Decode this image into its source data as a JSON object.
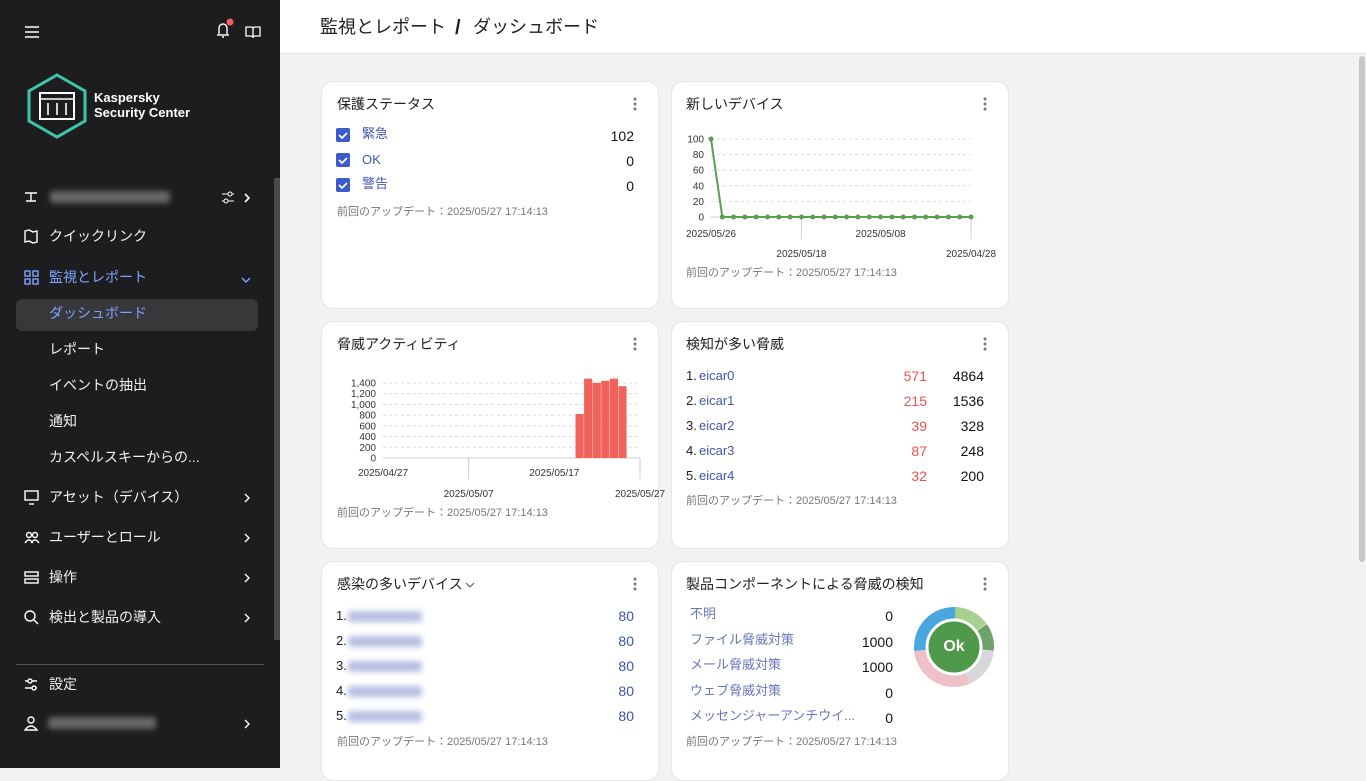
{
  "sidebar": {
    "brand": [
      "Kaspersky",
      "Security Center"
    ],
    "menu": [
      {
        "label": "クイックリンク"
      },
      {
        "label": "監視とレポート",
        "children": [
          "ダッシュボード",
          "レポート",
          "イベントの抽出",
          "通知",
          "カスペルスキーからの..."
        ]
      },
      {
        "label": "アセット（デバイス）"
      },
      {
        "label": "ユーザーとロール"
      },
      {
        "label": "操作"
      },
      {
        "label": "検出と製品の導入"
      }
    ],
    "settings": "設定"
  },
  "breadcrumb": {
    "parent": "監視とレポート",
    "separator": "/",
    "current": "ダッシュボード"
  },
  "widgets": {
    "protection": {
      "title": "保護ステータス",
      "items": [
        {
          "label": "緊急",
          "value": 102
        },
        {
          "label": "OK",
          "value": 0
        },
        {
          "label": "警告",
          "value": 0
        }
      ],
      "updated": "前回のアップデート：2025/05/27 17:14:13"
    },
    "new_devices": {
      "title": "新しいデバイス",
      "chart": {
        "type": "line",
        "categories": [
          "2025/05/26",
          null,
          null,
          null,
          null,
          null,
          null,
          null,
          "2025/05/18",
          null,
          null,
          null,
          null,
          null,
          null,
          "2025/05/08",
          null,
          null,
          null,
          null,
          null,
          null,
          null,
          "2025/04/28"
        ],
        "values": [
          100,
          0,
          0,
          0,
          0,
          0,
          0,
          0,
          0,
          0,
          0,
          0,
          0,
          0,
          0,
          0,
          0,
          0,
          0,
          0,
          0,
          0,
          0,
          0
        ],
        "color": "#5b9e4f",
        "ylim": [
          0,
          100
        ],
        "yticks": [
          0,
          20,
          40,
          60,
          80,
          100
        ],
        "grid": true
      },
      "updated": "前回のアップデート：2025/05/27 17:14:13"
    },
    "threat_activity": {
      "title": "脅威アクティビティ",
      "chart": {
        "type": "bar",
        "categories": [
          "2025/04/27",
          null,
          null,
          null,
          null,
          null,
          null,
          null,
          null,
          null,
          "2025/05/07",
          null,
          null,
          null,
          null,
          null,
          null,
          null,
          null,
          null,
          "2025/05/17",
          null,
          null,
          null,
          null,
          null,
          null,
          null,
          null,
          null,
          "2025/05/27"
        ],
        "values": [
          0,
          0,
          0,
          0,
          0,
          0,
          0,
          0,
          0,
          0,
          0,
          0,
          0,
          0,
          0,
          0,
          0,
          0,
          0,
          0,
          0,
          0,
          0,
          820,
          1480,
          1400,
          1440,
          1480,
          1340,
          0,
          0
        ],
        "color": "#f0625a",
        "ylim": [
          0,
          1500
        ],
        "yticks": [
          0,
          200,
          400,
          600,
          800,
          {
            "value": 1000,
            "label": "1,000"
          },
          {
            "value": 1200,
            "label": "1,200"
          },
          {
            "value": 1400,
            "label": "1,400"
          }
        ],
        "grid": true
      },
      "updated": "前回のアップデート：2025/05/27 17:14:13"
    },
    "top_threats": {
      "title": "検知が多い脅威",
      "rows": [
        {
          "rank": "1.",
          "name": "eicar0",
          "devices": 571,
          "detections": 4864
        },
        {
          "rank": "2.",
          "name": "eicar1",
          "devices": 215,
          "detections": 1536
        },
        {
          "rank": "3.",
          "name": "eicar2",
          "devices": 39,
          "detections": 328
        },
        {
          "rank": "4.",
          "name": "eicar3",
          "devices": 87,
          "detections": 248
        },
        {
          "rank": "5.",
          "name": "eicar4",
          "devices": 32,
          "detections": 200
        }
      ],
      "updated": "前回のアップデート：2025/05/27 17:14:13"
    },
    "infected_devices": {
      "title": "感染の多いデバイス",
      "rows": [
        {
          "rank": "1.",
          "value": 80
        },
        {
          "rank": "2.",
          "value": 80
        },
        {
          "rank": "3.",
          "value": 80
        },
        {
          "rank": "4.",
          "value": 80
        },
        {
          "rank": "5.",
          "value": 80
        }
      ],
      "updated": "前回のアップデート：2025/05/27 17:14:13"
    },
    "components": {
      "title": "製品コンポーネントによる脅威の検知",
      "rows": [
        {
          "label": "不明",
          "value": 0
        },
        {
          "label": "ファイル脅威対策",
          "value": 1000
        },
        {
          "label": "メール脅威対策",
          "value": 1000
        },
        {
          "label": "ウェブ脅威対策",
          "value": 0
        },
        {
          "label": "メッセンジャーアンチウイ...",
          "value": 0
        }
      ],
      "status": "Ok",
      "updated": "前回のアップデート：2025/05/27 17:14:13"
    }
  }
}
